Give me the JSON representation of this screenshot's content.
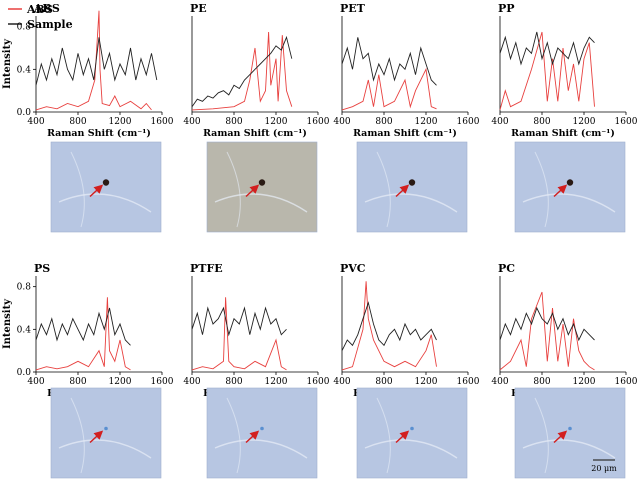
{
  "legend": {
    "items": [
      {
        "label": "ABS",
        "color": "#e8413f"
      },
      {
        "label": "Sample",
        "color": "#222222"
      }
    ]
  },
  "axis": {
    "ylabel": "Intensity",
    "xlabel": "Raman Shift (cm⁻¹)",
    "xticks": [
      "400",
      "800",
      "1200",
      "1600"
    ],
    "yticks": [
      "0.0",
      "0.4",
      "0.8"
    ]
  },
  "colors": {
    "reference": "#e8413f",
    "sample": "#222222",
    "arrow": "#d21f1f"
  },
  "scale_bar": "20 μm",
  "chart_data": [
    {
      "type": "line",
      "title": "ABS",
      "xlabel": "Raman Shift (cm⁻¹)",
      "ylabel": "Intensity",
      "xlim": [
        400,
        1600
      ],
      "ylim": [
        0,
        0.9
      ],
      "series": [
        {
          "name": "ABS",
          "x": [
            400,
            500,
            600,
            700,
            800,
            900,
            960,
            1000,
            1010,
            1030,
            1100,
            1150,
            1200,
            1300,
            1400,
            1450,
            1500
          ],
          "y": [
            0.02,
            0.05,
            0.03,
            0.08,
            0.05,
            0.1,
            0.3,
            0.95,
            0.4,
            0.08,
            0.06,
            0.15,
            0.05,
            0.1,
            0.03,
            0.08,
            0.02
          ]
        },
        {
          "name": "Sample",
          "x": [
            400,
            450,
            500,
            550,
            600,
            650,
            700,
            750,
            800,
            850,
            900,
            950,
            1000,
            1050,
            1100,
            1150,
            1200,
            1250,
            1300,
            1350,
            1400,
            1450,
            1500,
            1550
          ],
          "y": [
            0.25,
            0.45,
            0.3,
            0.5,
            0.35,
            0.6,
            0.4,
            0.3,
            0.55,
            0.35,
            0.5,
            0.3,
            0.7,
            0.4,
            0.55,
            0.3,
            0.45,
            0.35,
            0.6,
            0.3,
            0.5,
            0.35,
            0.55,
            0.3
          ]
        }
      ]
    },
    {
      "type": "line",
      "title": "PE",
      "xlabel": "Raman Shift (cm⁻¹)",
      "xlim": [
        400,
        1600
      ],
      "ylim": [
        0,
        0.9
      ],
      "series": [
        {
          "name": "ABS",
          "x": [
            400,
            600,
            800,
            900,
            950,
            1000,
            1050,
            1100,
            1130,
            1150,
            1200,
            1220,
            1260,
            1300,
            1350
          ],
          "y": [
            0.02,
            0.03,
            0.05,
            0.1,
            0.3,
            0.6,
            0.1,
            0.2,
            0.75,
            0.25,
            0.5,
            0.1,
            0.72,
            0.2,
            0.05
          ]
        },
        {
          "name": "Sample",
          "x": [
            400,
            450,
            500,
            550,
            600,
            650,
            700,
            750,
            800,
            850,
            900,
            950,
            1000,
            1050,
            1100,
            1150,
            1200,
            1250,
            1300,
            1350
          ],
          "y": [
            0.05,
            0.12,
            0.1,
            0.15,
            0.13,
            0.18,
            0.2,
            0.16,
            0.25,
            0.22,
            0.3,
            0.35,
            0.4,
            0.45,
            0.5,
            0.55,
            0.62,
            0.58,
            0.7,
            0.5
          ]
        }
      ]
    },
    {
      "type": "line",
      "title": "PET",
      "xlabel": "Raman Shift (cm⁻¹)",
      "xlim": [
        400,
        1600
      ],
      "ylim": [
        0,
        0.9
      ],
      "series": [
        {
          "name": "ABS",
          "x": [
            400,
            500,
            600,
            650,
            700,
            750,
            800,
            900,
            1000,
            1050,
            1100,
            1200,
            1250,
            1300
          ],
          "y": [
            0.02,
            0.05,
            0.1,
            0.3,
            0.05,
            0.35,
            0.05,
            0.1,
            0.3,
            0.05,
            0.2,
            0.4,
            0.05,
            0.03
          ]
        },
        {
          "name": "Sample",
          "x": [
            400,
            450,
            500,
            550,
            600,
            650,
            700,
            750,
            800,
            850,
            900,
            950,
            1000,
            1050,
            1100,
            1150,
            1200,
            1250,
            1300
          ],
          "y": [
            0.45,
            0.6,
            0.4,
            0.7,
            0.5,
            0.55,
            0.3,
            0.45,
            0.35,
            0.5,
            0.3,
            0.45,
            0.4,
            0.55,
            0.35,
            0.6,
            0.45,
            0.3,
            0.25
          ]
        }
      ]
    },
    {
      "type": "line",
      "title": "PP",
      "xlabel": "Raman Shift (cm⁻¹)",
      "xlim": [
        400,
        1600
      ],
      "ylim": [
        0,
        0.9
      ],
      "series": [
        {
          "name": "ABS",
          "x": [
            400,
            450,
            500,
            600,
            700,
            800,
            850,
            900,
            950,
            1000,
            1050,
            1100,
            1150,
            1200,
            1250,
            1300
          ],
          "y": [
            0.02,
            0.2,
            0.05,
            0.1,
            0.4,
            0.75,
            0.1,
            0.5,
            0.1,
            0.6,
            0.2,
            0.45,
            0.1,
            0.5,
            0.65,
            0.05
          ]
        },
        {
          "name": "Sample",
          "x": [
            400,
            450,
            500,
            550,
            600,
            650,
            700,
            750,
            800,
            850,
            900,
            950,
            1000,
            1050,
            1100,
            1150,
            1200,
            1250,
            1300
          ],
          "y": [
            0.55,
            0.7,
            0.5,
            0.65,
            0.45,
            0.6,
            0.55,
            0.75,
            0.5,
            0.65,
            0.45,
            0.6,
            0.55,
            0.5,
            0.65,
            0.45,
            0.6,
            0.7,
            0.65
          ]
        }
      ]
    },
    {
      "type": "line",
      "title": "PS",
      "xlabel": "Raman Shift (cm⁻¹)",
      "xlim": [
        400,
        1600
      ],
      "ylim": [
        0,
        0.9
      ],
      "series": [
        {
          "name": "ABS",
          "x": [
            400,
            500,
            600,
            700,
            800,
            900,
            1000,
            1050,
            1080,
            1100,
            1150,
            1200,
            1250,
            1300
          ],
          "y": [
            0.02,
            0.05,
            0.03,
            0.05,
            0.1,
            0.05,
            0.2,
            0.05,
            0.7,
            0.2,
            0.1,
            0.3,
            0.05,
            0.02
          ]
        },
        {
          "name": "Sample",
          "x": [
            400,
            450,
            500,
            550,
            600,
            650,
            700,
            750,
            800,
            850,
            900,
            950,
            1000,
            1050,
            1100,
            1150,
            1200,
            1250,
            1300
          ],
          "y": [
            0.3,
            0.45,
            0.35,
            0.5,
            0.3,
            0.45,
            0.35,
            0.5,
            0.4,
            0.3,
            0.45,
            0.35,
            0.55,
            0.4,
            0.6,
            0.35,
            0.45,
            0.3,
            0.25
          ]
        }
      ]
    },
    {
      "type": "line",
      "title": "PTFE",
      "xlabel": "Raman Shift (cm⁻¹)",
      "xlim": [
        400,
        1600
      ],
      "ylim": [
        0,
        0.9
      ],
      "series": [
        {
          "name": "ABS",
          "x": [
            400,
            500,
            600,
            700,
            720,
            750,
            800,
            900,
            1000,
            1100,
            1200,
            1250,
            1300
          ],
          "y": [
            0.02,
            0.05,
            0.03,
            0.1,
            0.7,
            0.1,
            0.05,
            0.03,
            0.1,
            0.05,
            0.3,
            0.05,
            0.02
          ]
        },
        {
          "name": "Sample",
          "x": [
            400,
            450,
            500,
            550,
            600,
            650,
            700,
            750,
            800,
            850,
            900,
            950,
            1000,
            1050,
            1100,
            1150,
            1200,
            1250,
            1300
          ],
          "y": [
            0.4,
            0.55,
            0.35,
            0.6,
            0.45,
            0.5,
            0.6,
            0.35,
            0.5,
            0.45,
            0.6,
            0.35,
            0.55,
            0.4,
            0.6,
            0.45,
            0.5,
            0.35,
            0.4
          ]
        }
      ]
    },
    {
      "type": "line",
      "title": "PVC",
      "xlabel": "Raman Shift (cm⁻¹)",
      "xlim": [
        400,
        1600
      ],
      "ylim": [
        0,
        0.9
      ],
      "series": [
        {
          "name": "ABS",
          "x": [
            400,
            500,
            600,
            630,
            650,
            700,
            800,
            900,
            1000,
            1100,
            1200,
            1250,
            1300
          ],
          "y": [
            0.02,
            0.05,
            0.4,
            0.85,
            0.5,
            0.3,
            0.1,
            0.05,
            0.1,
            0.05,
            0.2,
            0.35,
            0.05
          ]
        },
        {
          "name": "Sample",
          "x": [
            400,
            450,
            500,
            550,
            600,
            650,
            700,
            750,
            800,
            850,
            900,
            950,
            1000,
            1050,
            1100,
            1150,
            1200,
            1250,
            1300
          ],
          "y": [
            0.2,
            0.3,
            0.25,
            0.35,
            0.5,
            0.65,
            0.45,
            0.3,
            0.25,
            0.35,
            0.4,
            0.3,
            0.45,
            0.35,
            0.4,
            0.3,
            0.35,
            0.4,
            0.3
          ]
        }
      ]
    },
    {
      "type": "line",
      "title": "PC",
      "xlabel": "Raman Shift (cm⁻¹)",
      "xlim": [
        400,
        1600
      ],
      "ylim": [
        0,
        0.9
      ],
      "series": [
        {
          "name": "ABS",
          "x": [
            400,
            500,
            600,
            650,
            700,
            800,
            850,
            900,
            950,
            1000,
            1050,
            1100,
            1150,
            1200,
            1250,
            1300
          ],
          "y": [
            0.02,
            0.1,
            0.3,
            0.05,
            0.5,
            0.75,
            0.1,
            0.6,
            0.1,
            0.45,
            0.05,
            0.5,
            0.2,
            0.1,
            0.05,
            0.02
          ]
        },
        {
          "name": "Sample",
          "x": [
            400,
            450,
            500,
            550,
            600,
            650,
            700,
            750,
            800,
            850,
            900,
            950,
            1000,
            1050,
            1100,
            1150,
            1200,
            1250,
            1300
          ],
          "y": [
            0.3,
            0.45,
            0.35,
            0.5,
            0.4,
            0.55,
            0.45,
            0.6,
            0.5,
            0.45,
            0.55,
            0.4,
            0.5,
            0.35,
            0.45,
            0.3,
            0.4,
            0.35,
            0.3
          ]
        }
      ]
    }
  ]
}
